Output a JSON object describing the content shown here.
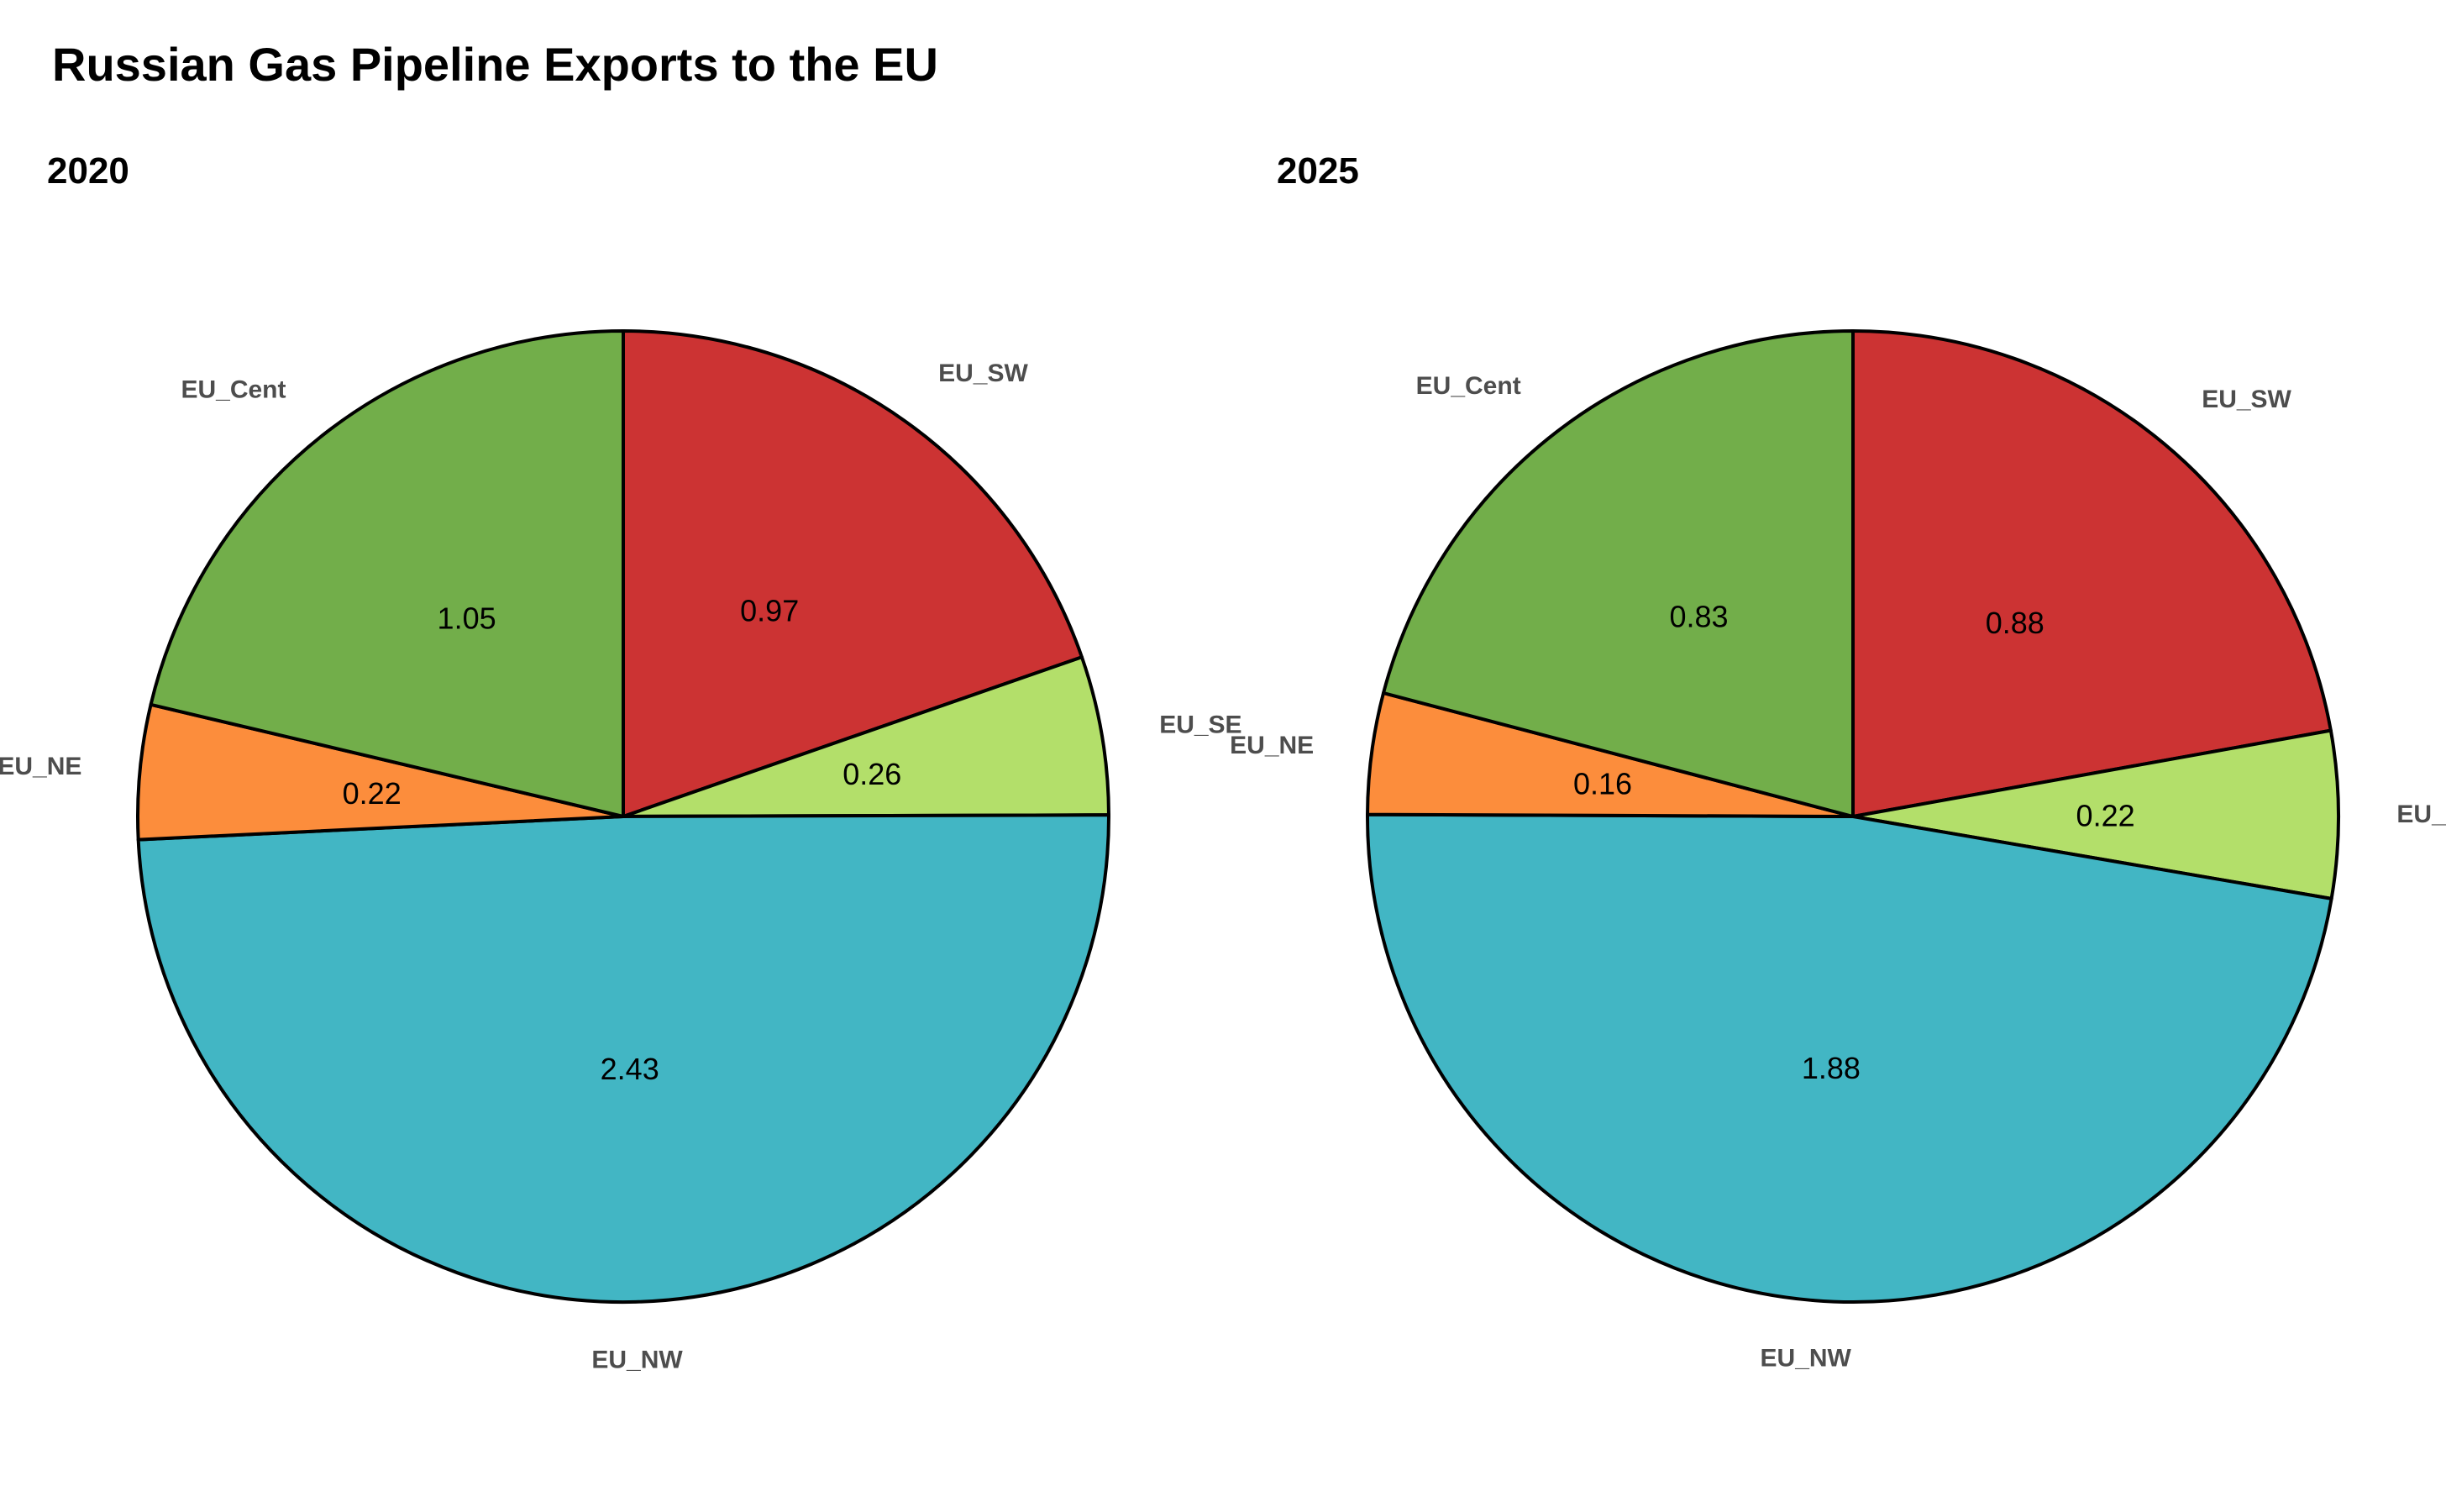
{
  "figure": {
    "title": "Russian Gas Pipeline Exports to the EU"
  },
  "chart_data": [
    {
      "type": "pie",
      "title": "2020",
      "categories": [
        "EU_SW",
        "EU_SE",
        "EU_NW",
        "EU_NE",
        "EU_Cent"
      ],
      "values": [
        0.97,
        0.26,
        2.43,
        0.22,
        1.05
      ],
      "value_labels": [
        "0.97",
        "0.26",
        "2.43",
        "0.22",
        "1.05"
      ],
      "colors": [
        "#cc3333",
        "#b3df6a",
        "#42b6c4",
        "#fc8d3c",
        "#72ae4a"
      ],
      "start_angle": "12 o'clock",
      "direction": "clockwise"
    },
    {
      "type": "pie",
      "title": "2025",
      "categories": [
        "EU_SW",
        "EU_SE",
        "EU_NW",
        "EU_NE",
        "EU_Cent"
      ],
      "values": [
        0.88,
        0.22,
        1.88,
        0.16,
        0.83
      ],
      "value_labels": [
        "0.88",
        "0.22",
        "1.88",
        "0.16",
        "0.83"
      ],
      "colors": [
        "#cc3333",
        "#b3df6a",
        "#42b6c4",
        "#fc8d3c",
        "#72ae4a"
      ],
      "start_angle": "12 o'clock",
      "direction": "clockwise"
    }
  ]
}
